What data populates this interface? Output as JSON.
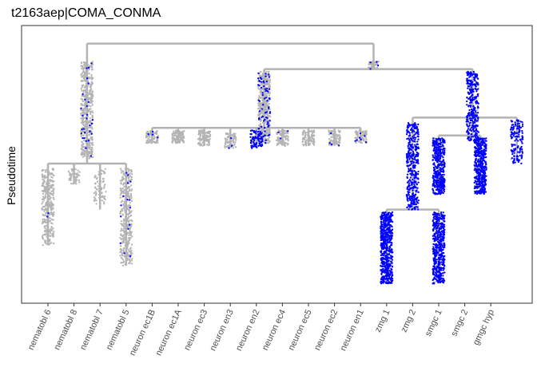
{
  "chart_data": {
    "type": "scatter",
    "subtype": "lineage-tree-jitter",
    "title": "t2163aep|COMA_CONMA",
    "ylabel": "Pseudotime",
    "xlabel": "",
    "ytick_labels": "none",
    "categories": [
      "nematobl 6",
      "nematobl 8",
      "nematobl 7",
      "nematobl 5",
      "neuron ec1B",
      "neuron ec1A",
      "neuron ec3",
      "neuron en3",
      "neuron en2",
      "neuron ec4",
      "neuron ec5",
      "neuron ec2",
      "neuron en1",
      "zmg 1",
      "zmg 2",
      "smgc 1",
      "smgc 2",
      "gmgc hyp"
    ],
    "ylim": [
      0,
      1
    ],
    "y_direction": "top is start",
    "grid": false,
    "legend": "none",
    "colors": {
      "not_expressed": "#b3b3b3",
      "expressed": "#0000ff",
      "tree_lines": "#b3b3b3",
      "panel_border": "#333333"
    },
    "tree": {
      "root": {
        "x": [
          1.5,
          12.5
        ],
        "y": 0.03
      },
      "branches": [
        {
          "x": [
            1.5,
            1.5
          ],
          "y": [
            0.03,
            0.5
          ]
        },
        {
          "x": [
            0,
            3.0
          ],
          "y": 0.5
        },
        {
          "x": [
            0,
            0
          ],
          "y": [
            0.5,
            0.82
          ]
        },
        {
          "x": [
            1.0,
            1.0
          ],
          "y": [
            0.5,
            0.58
          ]
        },
        {
          "x": [
            2.0,
            2.0
          ],
          "y": [
            0.5,
            0.68
          ]
        },
        {
          "x": [
            3.0,
            3.0
          ],
          "y": [
            0.5,
            0.9
          ]
        },
        {
          "x": [
            12.5,
            12.5
          ],
          "y": [
            0.03,
            0.13
          ]
        },
        {
          "x": [
            8.3,
            16.3
          ],
          "y": 0.13
        },
        {
          "x": [
            8.3,
            8.3
          ],
          "y": [
            0.13,
            0.36
          ]
        },
        {
          "x": [
            4.0,
            12.0
          ],
          "y": 0.36
        },
        {
          "x": [
            4,
            4
          ],
          "y": [
            0.36,
            0.42
          ]
        },
        {
          "x": [
            5,
            5
          ],
          "y": [
            0.36,
            0.42
          ]
        },
        {
          "x": [
            6,
            6
          ],
          "y": [
            0.36,
            0.43
          ]
        },
        {
          "x": [
            7,
            7
          ],
          "y": [
            0.36,
            0.44
          ]
        },
        {
          "x": [
            8,
            8
          ],
          "y": [
            0.36,
            0.44
          ]
        },
        {
          "x": [
            9,
            9
          ],
          "y": [
            0.36,
            0.43
          ]
        },
        {
          "x": [
            10,
            10
          ],
          "y": [
            0.36,
            0.43
          ]
        },
        {
          "x": [
            11,
            11
          ],
          "y": [
            0.36,
            0.43
          ]
        },
        {
          "x": [
            12,
            12
          ],
          "y": [
            0.36,
            0.42
          ]
        },
        {
          "x": [
            16.3,
            16.3
          ],
          "y": [
            0.13,
            0.32
          ]
        },
        {
          "x": [
            14.0,
            18.0
          ],
          "y": 0.32
        },
        {
          "x": [
            14.0,
            14.0
          ],
          "y": [
            0.32,
            0.68
          ]
        },
        {
          "x": [
            13.0,
            15.0
          ],
          "y": 0.68
        },
        {
          "x": [
            13,
            13
          ],
          "y": [
            0.68,
            0.97
          ]
        },
        {
          "x": [
            15,
            15
          ],
          "y": [
            0.68,
            0.97
          ]
        },
        {
          "x": [
            16.3,
            16.3
          ],
          "y": [
            0.32,
            0.39
          ]
        },
        {
          "x": [
            15.0,
            16.6
          ],
          "y": 0.39
        },
        {
          "x": [
            15.0,
            15.0
          ],
          "y": [
            0.39,
            0.62
          ]
        },
        {
          "x": [
            16.6,
            16.6
          ],
          "y": [
            0.39,
            0.62
          ]
        },
        {
          "x": [
            18,
            18
          ],
          "y": [
            0.32,
            0.48
          ]
        }
      ]
    },
    "point_clouds": [
      {
        "x": 1.5,
        "y_range": [
          0.1,
          0.48
        ],
        "n": 520,
        "expressed_fraction": 0.05
      },
      {
        "x": 0,
        "y_range": [
          0.52,
          0.82
        ],
        "n": 300,
        "expressed_fraction": 0.01
      },
      {
        "x": 1.0,
        "y_range": [
          0.52,
          0.58
        ],
        "n": 50,
        "expressed_fraction": 0.0
      },
      {
        "x": 2.0,
        "y_range": [
          0.52,
          0.66
        ],
        "n": 70,
        "expressed_fraction": 0.0
      },
      {
        "x": 3.0,
        "y_range": [
          0.52,
          0.9
        ],
        "n": 360,
        "expressed_fraction": 0.03
      },
      {
        "x": 12.5,
        "y_range": [
          0.1,
          0.13
        ],
        "n": 50,
        "expressed_fraction": 0.12
      },
      {
        "x": 8.3,
        "y_range": [
          0.14,
          0.42
        ],
        "n": 480,
        "expressed_fraction": 0.15
      },
      {
        "x": 4,
        "y_range": [
          0.37,
          0.42
        ],
        "n": 90,
        "expressed_fraction": 0.02
      },
      {
        "x": 5,
        "y_range": [
          0.37,
          0.42
        ],
        "n": 90,
        "expressed_fraction": 0.0
      },
      {
        "x": 6,
        "y_range": [
          0.37,
          0.43
        ],
        "n": 100,
        "expressed_fraction": 0.0
      },
      {
        "x": 7,
        "y_range": [
          0.38,
          0.44
        ],
        "n": 80,
        "expressed_fraction": 0.02
      },
      {
        "x": 8,
        "y_range": [
          0.37,
          0.44
        ],
        "n": 110,
        "expressed_fraction": 0.7
      },
      {
        "x": 9,
        "y_range": [
          0.37,
          0.43
        ],
        "n": 90,
        "expressed_fraction": 0.02
      },
      {
        "x": 10,
        "y_range": [
          0.37,
          0.43
        ],
        "n": 90,
        "expressed_fraction": 0.0
      },
      {
        "x": 11,
        "y_range": [
          0.37,
          0.43
        ],
        "n": 90,
        "expressed_fraction": 0.03
      },
      {
        "x": 12,
        "y_range": [
          0.37,
          0.42
        ],
        "n": 80,
        "expressed_fraction": 0.15
      },
      {
        "x": 16.3,
        "y_range": [
          0.14,
          0.41
        ],
        "n": 330,
        "expressed_fraction": 0.95
      },
      {
        "x": 14.0,
        "y_range": [
          0.34,
          0.68
        ],
        "n": 420,
        "expressed_fraction": 0.93
      },
      {
        "x": 13,
        "y_range": [
          0.69,
          0.97
        ],
        "n": 620,
        "expressed_fraction": 0.96
      },
      {
        "x": 15,
        "y_range": [
          0.69,
          0.97
        ],
        "n": 520,
        "expressed_fraction": 0.96
      },
      {
        "x": 15.0,
        "y_range": [
          0.4,
          0.62
        ],
        "n": 420,
        "expressed_fraction": 0.96
      },
      {
        "x": 16.6,
        "y_range": [
          0.4,
          0.62
        ],
        "n": 480,
        "expressed_fraction": 0.95
      },
      {
        "x": 18,
        "y_range": [
          0.33,
          0.5
        ],
        "n": 150,
        "expressed_fraction": 0.96
      }
    ]
  }
}
